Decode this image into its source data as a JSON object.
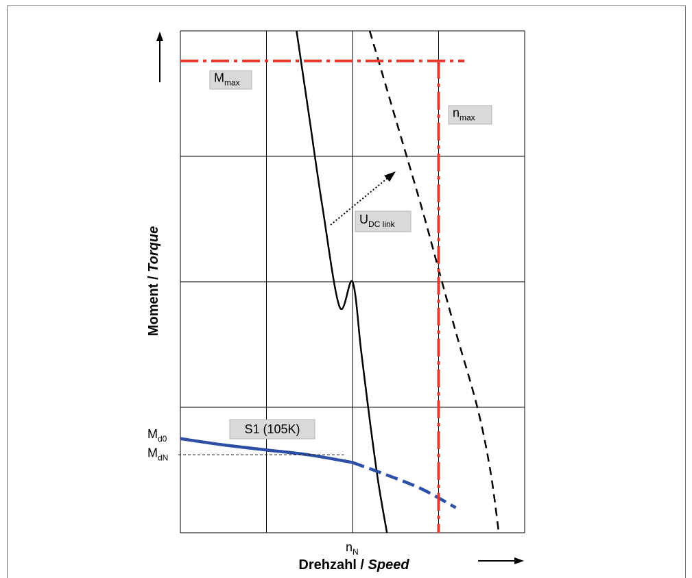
{
  "chart_data": {
    "type": "line",
    "title": "",
    "xlabel": {
      "main": "Drehzahl / ",
      "italic": "Speed"
    },
    "ylabel": {
      "main": "Moment / ",
      "italic": "Torque"
    },
    "x_ticks": [
      {
        "label": "n",
        "sub": "N",
        "x": 2
      }
    ],
    "y_ticks": [
      {
        "label": "M",
        "sub": "d0",
        "y": 0.75
      },
      {
        "label": "M",
        "sub": "dN",
        "y": 0.62
      }
    ],
    "xlim": [
      0,
      4
    ],
    "ylim": [
      0,
      4
    ],
    "grid": true,
    "series": [
      {
        "id": "voltage-limit-curve",
        "style": "solid",
        "color": "#000000",
        "points": [
          [
            1.35,
            4.0
          ],
          [
            1.5,
            3.3
          ],
          [
            1.65,
            2.6
          ],
          [
            1.85,
            1.8
          ],
          [
            2.0,
            2.0
          ],
          [
            2.1,
            1.45
          ],
          [
            2.2,
            0.9
          ],
          [
            2.3,
            0.4
          ],
          [
            2.4,
            0.0
          ]
        ]
      },
      {
        "id": "voltage-limit-curve-higher-udc",
        "style": "dashed",
        "color": "#000000",
        "points": [
          [
            2.2,
            4.0
          ],
          [
            2.5,
            3.3
          ],
          [
            2.8,
            2.6
          ],
          [
            3.0,
            2.1
          ],
          [
            3.2,
            1.6
          ],
          [
            3.45,
            1.0
          ],
          [
            3.6,
            0.5
          ],
          [
            3.7,
            0.0
          ]
        ]
      },
      {
        "id": "s1-curve",
        "name": "S1 (105K)",
        "style": "solid-then-dashed",
        "color": "#2e4fa6",
        "points": [
          [
            0.0,
            0.75
          ],
          [
            0.5,
            0.7
          ],
          [
            1.0,
            0.66
          ],
          [
            1.5,
            0.62
          ],
          [
            2.0,
            0.56
          ],
          [
            2.4,
            0.46
          ],
          [
            2.8,
            0.35
          ],
          [
            3.2,
            0.2
          ]
        ],
        "dash_from_x": 2.2
      },
      {
        "id": "m-max-line",
        "style": "dash-dot",
        "color": "#e8382e",
        "value": 3.76
      },
      {
        "id": "n-max-line",
        "style": "dash-dot",
        "color": "#e8382e",
        "value": 3.0
      }
    ],
    "annotations": {
      "m_max": {
        "text": "M",
        "sub": "max"
      },
      "n_max": {
        "text": "n",
        "sub": "max"
      },
      "udc": {
        "text": "U",
        "sub": "DC link"
      },
      "s1": {
        "text": "S1 (105K)"
      }
    }
  }
}
